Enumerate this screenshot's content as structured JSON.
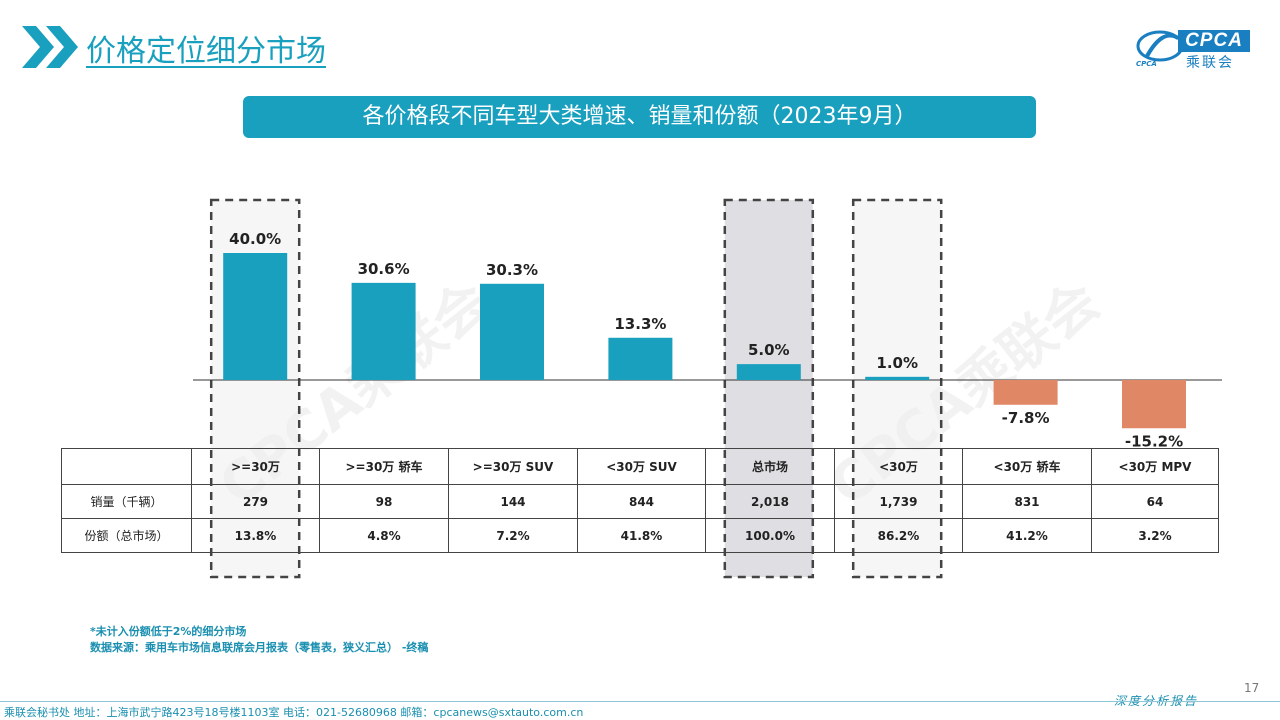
{
  "header": {
    "title": "价格定位细分市场",
    "banner": "各价格段不同车型大类增速、销量和份额（2023年9月）"
  },
  "logo": {
    "text": "CPCA",
    "cn": "乘联会",
    "sub": "CPCA"
  },
  "watermark": "CPCA乘联会",
  "colors": {
    "accent": "#1aa0bf",
    "positive": "#1aa0bf",
    "negative": "#e08866",
    "highlight_box": "#d9d9de"
  },
  "chart_data": {
    "type": "bar",
    "categories": [
      ">=30万",
      ">=30万 轿车",
      ">=30万 SUV",
      "<30万 SUV",
      "总市场",
      "<30万",
      "<30万 轿车",
      "<30万 MPV"
    ],
    "series": [
      {
        "values": [
          40.0,
          30.6,
          30.3,
          13.3,
          5.0,
          1.0,
          -7.8,
          -15.2
        ]
      }
    ],
    "data_labels": [
      "40.0%",
      "30.6%",
      "30.3%",
      "13.3%",
      "5.0%",
      "1.0%",
      "-7.8%",
      "-15.2%"
    ],
    "ylim": [
      -17,
      40
    ],
    "highlighted": [
      ">=30万",
      "总市场",
      "<30万"
    ]
  },
  "table": {
    "rows": [
      {
        "label": "销量（千辆）",
        "values": [
          "279",
          "98",
          "144",
          "844",
          "2,018",
          "1,739",
          "831",
          "64"
        ]
      },
      {
        "label": "份额（总市场）",
        "values": [
          "13.8%",
          "4.8%",
          "7.2%",
          "41.8%",
          "100.0%",
          "86.2%",
          "41.2%",
          "3.2%"
        ]
      }
    ]
  },
  "footnote": {
    "line1": "*未计入份额低于2%的细分市场",
    "line2": "数据来源：乘用车市场信息联席会月报表（零售表，狭义汇总）    -终稿"
  },
  "footer": {
    "address": "乘联会秘书处    地址：上海市武宁路423号18号楼1103室    电话：021-52680968    邮箱：cpcanews@sxtauto.com.cn",
    "report": "深度分析报告",
    "page": "17"
  }
}
